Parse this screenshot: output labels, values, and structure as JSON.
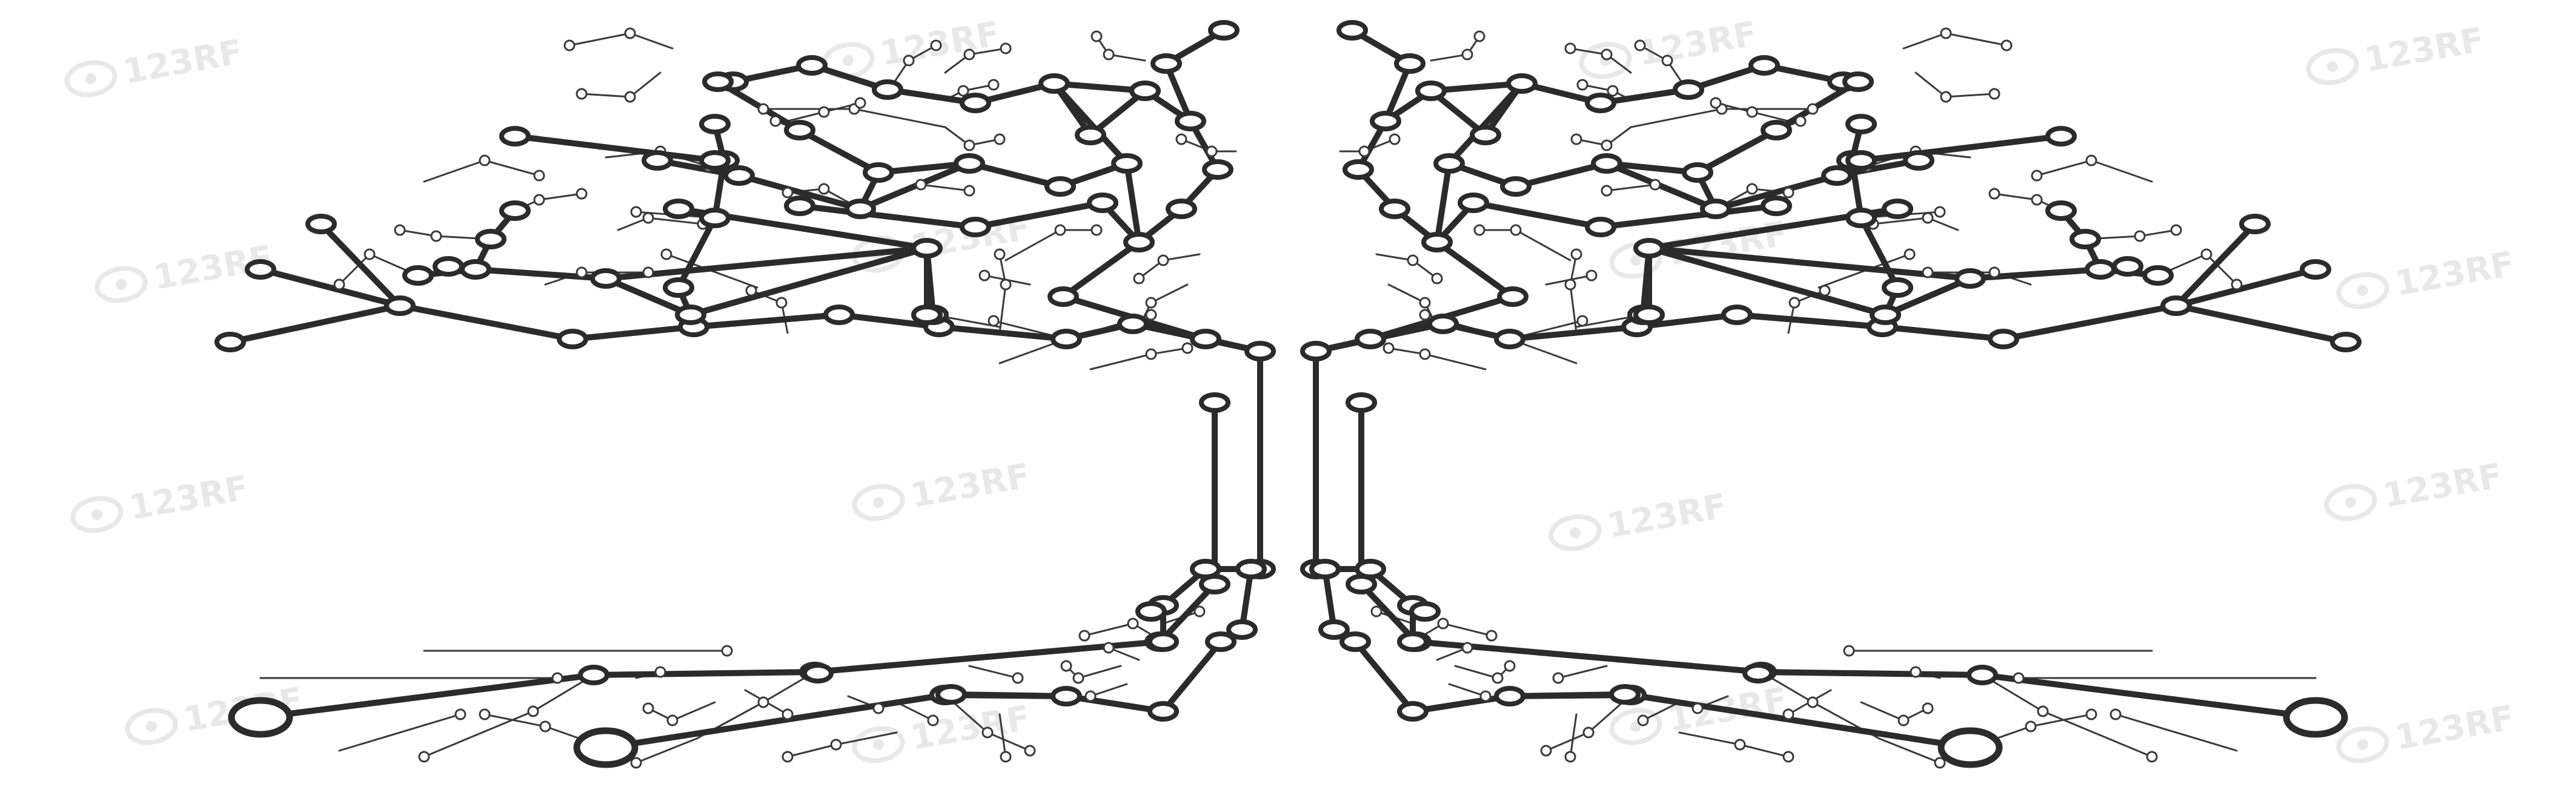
{
  "image": {
    "subject": "circuit-board-tree",
    "colors": {
      "background": "#ffffff",
      "trace": "#2b2b2b",
      "thin_trace": "#3a3a3a",
      "watermark": "#e6e6e6"
    }
  },
  "watermark": {
    "text": "123RF",
    "icon": "123rf-logo-icon"
  }
}
